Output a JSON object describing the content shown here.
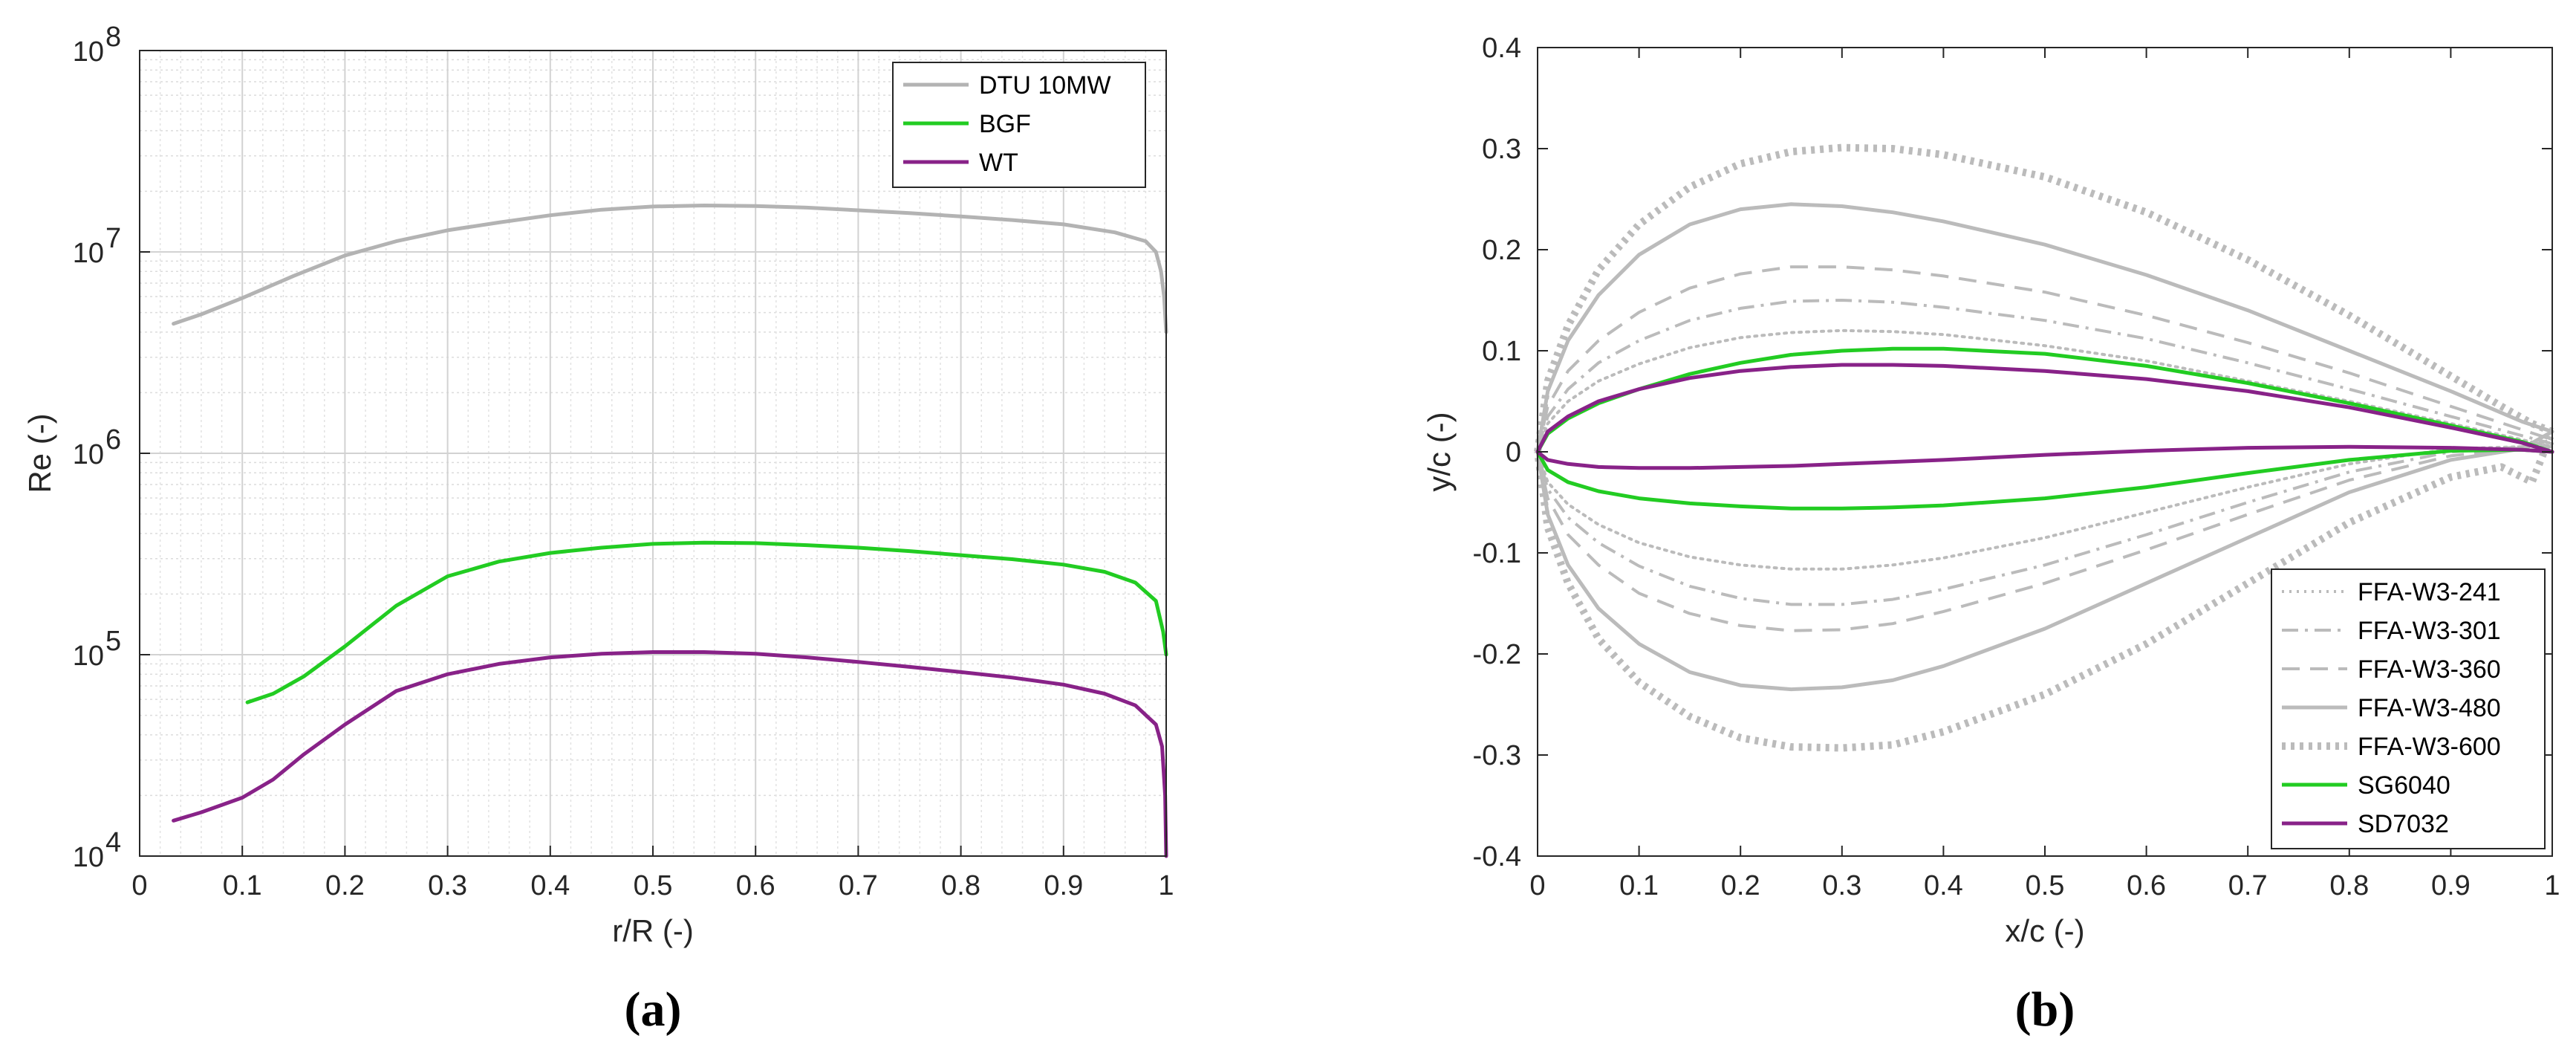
{
  "chart_data": [
    {
      "panel_label": "(a)",
      "type": "line",
      "xlabel": "r/R (-)",
      "ylabel": "Re (-)",
      "xlim": [
        0,
        1
      ],
      "ylim": [
        10000,
        100000000
      ],
      "yscale": "log",
      "grid": true,
      "minor_grid": true,
      "legend_position": "top-right",
      "xticks": [
        "0",
        "0.1",
        "0.2",
        "0.3",
        "0.4",
        "0.5",
        "0.6",
        "0.7",
        "0.8",
        "0.9",
        "1"
      ],
      "yticks": [
        {
          "value": 10000,
          "base": "10",
          "exp": "4"
        },
        {
          "value": 100000,
          "base": "10",
          "exp": "5"
        },
        {
          "value": 1000000,
          "base": "10",
          "exp": "6"
        },
        {
          "value": 10000000,
          "base": "10",
          "exp": "7"
        },
        {
          "value": 100000000,
          "base": "10",
          "exp": "8"
        }
      ],
      "series": [
        {
          "name": "DTU 10MW",
          "color": "#b3b3b3",
          "style": "solid",
          "x": [
            0.033,
            0.06,
            0.1,
            0.15,
            0.2,
            0.25,
            0.3,
            0.35,
            0.4,
            0.45,
            0.5,
            0.55,
            0.6,
            0.65,
            0.7,
            0.75,
            0.8,
            0.85,
            0.9,
            0.95,
            0.98,
            0.99,
            0.995,
            0.998,
            1.0
          ],
          "y": [
            4400000,
            4900000,
            5900000,
            7600000,
            9600000,
            11300000,
            12800000,
            14000000,
            15200000,
            16200000,
            16800000,
            17000000,
            16900000,
            16600000,
            16100000,
            15600000,
            15000000,
            14400000,
            13700000,
            12500000,
            11300000,
            10000000,
            8000000,
            6000000,
            4000000
          ]
        },
        {
          "name": "BGF",
          "color": "#22cc22",
          "style": "solid",
          "x": [
            0.105,
            0.13,
            0.16,
            0.2,
            0.25,
            0.3,
            0.35,
            0.4,
            0.45,
            0.5,
            0.55,
            0.6,
            0.65,
            0.7,
            0.75,
            0.8,
            0.85,
            0.9,
            0.94,
            0.97,
            0.99,
            0.997,
            1.0
          ],
          "y": [
            58000,
            64000,
            78000,
            110000,
            175000,
            245000,
            290000,
            320000,
            340000,
            355000,
            360000,
            358000,
            350000,
            340000,
            327000,
            312000,
            298000,
            280000,
            258000,
            228000,
            185000,
            130000,
            100000
          ]
        },
        {
          "name": "WT",
          "color": "#882288",
          "style": "solid",
          "x": [
            0.033,
            0.06,
            0.1,
            0.13,
            0.16,
            0.2,
            0.25,
            0.3,
            0.35,
            0.4,
            0.45,
            0.5,
            0.55,
            0.6,
            0.65,
            0.7,
            0.75,
            0.8,
            0.85,
            0.9,
            0.94,
            0.97,
            0.99,
            0.996,
            0.999,
            1.0
          ],
          "y": [
            15000,
            16500,
            19500,
            24000,
            32000,
            45000,
            66000,
            80000,
            90000,
            97000,
            101000,
            103000,
            103000,
            101000,
            97000,
            92000,
            87000,
            82000,
            77000,
            71000,
            64000,
            56000,
            45000,
            35000,
            20000,
            10000
          ]
        }
      ]
    },
    {
      "panel_label": "(b)",
      "type": "line",
      "xlabel": "x/c (-)",
      "ylabel": "y/c (-)",
      "xlim": [
        0,
        1
      ],
      "ylim": [
        -0.4,
        0.4
      ],
      "grid": false,
      "legend_position": "bottom-right",
      "xticks": [
        "0",
        "0.1",
        "0.2",
        "0.3",
        "0.4",
        "0.5",
        "0.6",
        "0.7",
        "0.8",
        "0.9",
        "1"
      ],
      "yticks": [
        "-0.4",
        "-0.3",
        "-0.2",
        "-0.1",
        "0",
        "0.1",
        "0.2",
        "0.3",
        "0.4"
      ],
      "series": [
        {
          "name": "FFA-W3-241",
          "color": "#bbbbbb",
          "style": "dotted",
          "x": [
            0,
            0.01,
            0.03,
            0.06,
            0.1,
            0.15,
            0.2,
            0.25,
            0.3,
            0.35,
            0.4,
            0.5,
            0.6,
            0.7,
            0.8,
            0.9,
            0.97,
            1.0
          ],
          "upper": [
            0,
            0.028,
            0.05,
            0.07,
            0.087,
            0.103,
            0.113,
            0.118,
            0.12,
            0.119,
            0.116,
            0.105,
            0.09,
            0.07,
            0.05,
            0.028,
            0.012,
            0.005
          ],
          "lower": [
            0,
            -0.03,
            -0.052,
            -0.072,
            -0.09,
            -0.104,
            -0.112,
            -0.116,
            -0.116,
            -0.112,
            -0.105,
            -0.085,
            -0.06,
            -0.035,
            -0.012,
            0.003,
            0.005,
            0.0
          ]
        },
        {
          "name": "FFA-W3-301",
          "color": "#bbbbbb",
          "style": "dashdot",
          "x": [
            0,
            0.01,
            0.03,
            0.06,
            0.1,
            0.15,
            0.2,
            0.25,
            0.3,
            0.35,
            0.4,
            0.5,
            0.6,
            0.7,
            0.8,
            0.9,
            0.97,
            1.0
          ],
          "upper": [
            0,
            0.035,
            0.062,
            0.088,
            0.11,
            0.13,
            0.142,
            0.149,
            0.15,
            0.148,
            0.143,
            0.13,
            0.112,
            0.088,
            0.062,
            0.035,
            0.016,
            0.008
          ],
          "lower": [
            0,
            -0.037,
            -0.065,
            -0.09,
            -0.113,
            -0.133,
            -0.145,
            -0.151,
            -0.151,
            -0.146,
            -0.136,
            -0.112,
            -0.082,
            -0.05,
            -0.02,
            0.0,
            0.005,
            0.0
          ]
        },
        {
          "name": "FFA-W3-360",
          "color": "#bbbbbb",
          "style": "dashed",
          "x": [
            0,
            0.01,
            0.03,
            0.06,
            0.1,
            0.15,
            0.2,
            0.25,
            0.3,
            0.35,
            0.4,
            0.5,
            0.6,
            0.7,
            0.8,
            0.9,
            0.97,
            1.0
          ],
          "upper": [
            0,
            0.045,
            0.08,
            0.11,
            0.138,
            0.162,
            0.176,
            0.183,
            0.183,
            0.18,
            0.174,
            0.158,
            0.135,
            0.108,
            0.078,
            0.045,
            0.022,
            0.012
          ],
          "lower": [
            0,
            -0.046,
            -0.082,
            -0.112,
            -0.14,
            -0.16,
            -0.172,
            -0.177,
            -0.176,
            -0.17,
            -0.158,
            -0.13,
            -0.097,
            -0.062,
            -0.028,
            -0.004,
            0.004,
            0.0
          ]
        },
        {
          "name": "FFA-W3-480",
          "color": "#bbbbbb",
          "style": "solid",
          "x": [
            0,
            0.01,
            0.03,
            0.06,
            0.1,
            0.15,
            0.2,
            0.25,
            0.3,
            0.35,
            0.4,
            0.5,
            0.6,
            0.7,
            0.8,
            0.9,
            0.97,
            1.0
          ],
          "upper": [
            0,
            0.06,
            0.11,
            0.155,
            0.195,
            0.225,
            0.24,
            0.245,
            0.243,
            0.237,
            0.228,
            0.205,
            0.175,
            0.14,
            0.1,
            0.06,
            0.03,
            0.02
          ],
          "lower": [
            0,
            -0.062,
            -0.112,
            -0.155,
            -0.19,
            -0.218,
            -0.231,
            -0.235,
            -0.233,
            -0.226,
            -0.212,
            -0.175,
            -0.13,
            -0.085,
            -0.04,
            -0.008,
            0.003,
            0.0
          ]
        },
        {
          "name": "FFA-W3-600",
          "color": "#bbbbbb",
          "style": "thickdot",
          "x": [
            0,
            0.01,
            0.03,
            0.06,
            0.1,
            0.15,
            0.2,
            0.25,
            0.3,
            0.35,
            0.4,
            0.5,
            0.6,
            0.7,
            0.8,
            0.9,
            0.95,
            0.98,
            1.0
          ],
          "upper": [
            0,
            0.07,
            0.125,
            0.18,
            0.225,
            0.262,
            0.285,
            0.297,
            0.301,
            0.3,
            0.294,
            0.272,
            0.237,
            0.19,
            0.135,
            0.075,
            0.045,
            0.028,
            0.02
          ],
          "lower": [
            0,
            -0.075,
            -0.13,
            -0.185,
            -0.228,
            -0.262,
            -0.283,
            -0.292,
            -0.293,
            -0.29,
            -0.277,
            -0.24,
            -0.19,
            -0.13,
            -0.07,
            -0.025,
            -0.015,
            -0.03,
            -0.06
          ]
        },
        {
          "name": "SG6040",
          "color": "#22cc22",
          "style": "solid",
          "x": [
            0,
            0.01,
            0.03,
            0.06,
            0.1,
            0.15,
            0.2,
            0.25,
            0.3,
            0.35,
            0.4,
            0.5,
            0.6,
            0.7,
            0.8,
            0.9,
            0.97,
            1.0
          ],
          "upper": [
            0,
            0.018,
            0.033,
            0.048,
            0.062,
            0.077,
            0.088,
            0.096,
            0.1,
            0.102,
            0.102,
            0.097,
            0.085,
            0.068,
            0.048,
            0.026,
            0.01,
            0.0
          ],
          "lower": [
            0,
            -0.018,
            -0.03,
            -0.039,
            -0.046,
            -0.051,
            -0.054,
            -0.056,
            -0.056,
            -0.055,
            -0.053,
            -0.046,
            -0.035,
            -0.021,
            -0.008,
            0.001,
            0.002,
            0.0
          ]
        },
        {
          "name": "SD7032",
          "color": "#882288",
          "style": "solid",
          "x": [
            0,
            0.01,
            0.03,
            0.06,
            0.1,
            0.15,
            0.2,
            0.25,
            0.3,
            0.35,
            0.4,
            0.5,
            0.6,
            0.7,
            0.8,
            0.9,
            0.97,
            1.0
          ],
          "upper": [
            0,
            0.02,
            0.035,
            0.05,
            0.062,
            0.073,
            0.08,
            0.084,
            0.086,
            0.086,
            0.085,
            0.08,
            0.072,
            0.06,
            0.044,
            0.024,
            0.009,
            0.0
          ],
          "lower": [
            0,
            -0.008,
            -0.012,
            -0.015,
            -0.016,
            -0.016,
            -0.015,
            -0.014,
            -0.012,
            -0.01,
            -0.008,
            -0.003,
            0.001,
            0.004,
            0.005,
            0.004,
            0.002,
            0.0
          ]
        }
      ]
    }
  ]
}
